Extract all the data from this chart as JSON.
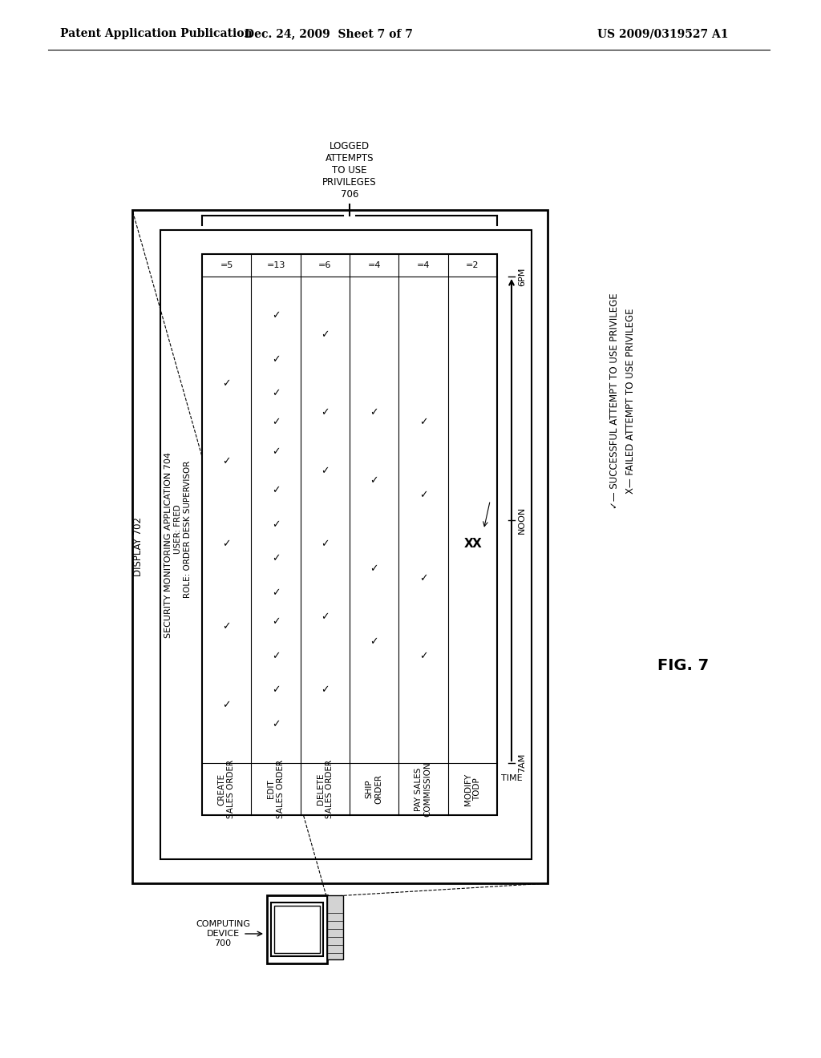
{
  "header_left": "Patent Application Publication",
  "header_mid": "Dec. 24, 2009  Sheet 7 of 7",
  "header_right": "US 2009/0319527 A1",
  "fig_label": "FIG. 7",
  "display_label": "DISPLAY 702",
  "security_app_label": "SECURITY MONITORING APPLICATION 704",
  "user_role": "USER: FRED\nROLE: ORDER DESK SUPERVISOR",
  "computing_device_label": "COMPUTING\nDEVICE\n700",
  "logged_label": "LOGGED\nATTEMPTS\nTO USE\nPRIVILEGES\n706",
  "legend_check": "✓— SUCCESSFUL ATTEMPT TO USE PRIVILEGE",
  "legend_x": "X— FAILED ATTEMPT TO USE PRIVILEGE",
  "time_label": "TIME",
  "time_ticks": [
    "7AM",
    "NOON",
    "6PM"
  ],
  "cols": [
    {
      "name": "CREATE\nSALES ORDER",
      "count": "=5"
    },
    {
      "name": "EDIT\nSALES ORDER",
      "count": "=13"
    },
    {
      "name": "DELETE\nSALES ORDER",
      "count": "=6"
    },
    {
      "name": "SHIP\nORDER",
      "count": "=4"
    },
    {
      "name": "PAY SALES\nCOMMISSION",
      "count": "=4"
    },
    {
      "name": "MODIFY\nTODP",
      "count": "=2"
    }
  ],
  "bg_color": "#ffffff"
}
